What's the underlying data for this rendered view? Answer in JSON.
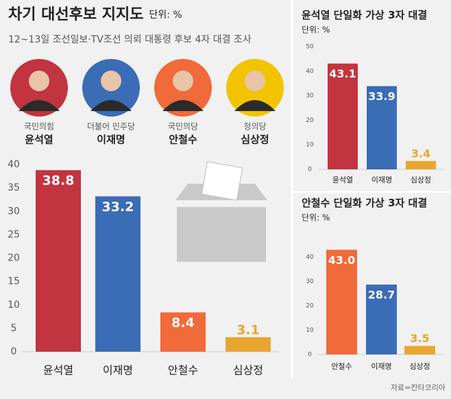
{
  "chart_data": [
    {
      "type": "bar",
      "title": "차기 대선후보 지지도",
      "unit": "단위: %",
      "subtitle": "12~13일 조선일보·TV조선 의뢰 대통령 후보 4자 대결 조사",
      "categories": [
        "윤석열",
        "이재명",
        "안철수",
        "심상정"
      ],
      "values": [
        38.8,
        33.2,
        8.4,
        3.1
      ],
      "colors": [
        "#c2343f",
        "#3b6cb6",
        "#f06a3a",
        "#e8a630"
      ],
      "ylim": [
        0,
        40
      ],
      "yticks": [
        0,
        5,
        10,
        15,
        20,
        25,
        30,
        35,
        40
      ],
      "grid": false
    },
    {
      "type": "bar",
      "title": "윤석열 단일화 가상 3자 대결",
      "unit": "단위: %",
      "categories": [
        "윤석열",
        "이재명",
        "심상정"
      ],
      "values": [
        43.1,
        33.9,
        3.4
      ],
      "colors": [
        "#c2343f",
        "#3b6cb6",
        "#e8a630"
      ],
      "ylim": [
        0,
        50
      ],
      "yticks": [
        0,
        10,
        20,
        30,
        40,
        50
      ],
      "grid": false
    },
    {
      "type": "bar",
      "title": "안철수 단일화 가상 3자 대결",
      "unit": "단위: %",
      "categories": [
        "안철수",
        "이재명",
        "심상정"
      ],
      "values": [
        43.0,
        28.7,
        3.5
      ],
      "value_labels": [
        "43.0",
        "28.7",
        "3.5"
      ],
      "colors": [
        "#f06a3a",
        "#3b6cb6",
        "#e8a630"
      ],
      "ylim": [
        0,
        40
      ],
      "yticks": [
        0,
        10,
        20,
        30,
        40
      ],
      "grid": false
    }
  ],
  "candidates": [
    {
      "party": "국민의힘",
      "name": "윤석열"
    },
    {
      "party": "더불어 민주당",
      "name": "이재명"
    },
    {
      "party": "국민의당",
      "name": "안철수"
    },
    {
      "party": "정의당",
      "name": "심상정"
    }
  ],
  "source": "자료=칸타코리아"
}
